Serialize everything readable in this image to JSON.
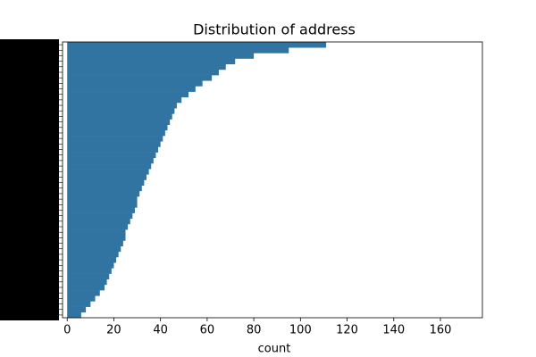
{
  "chart_data": {
    "type": "barh",
    "title": "Distribution of address",
    "xlabel": "count",
    "categories": [
      null,
      null,
      null,
      null,
      null,
      null,
      null,
      null,
      null,
      null,
      null,
      null,
      null,
      null,
      null,
      null,
      null,
      null,
      null,
      null,
      null,
      null,
      null,
      null,
      null,
      null,
      null,
      null,
      null,
      null,
      null,
      null,
      null,
      null,
      null,
      null,
      null,
      null,
      null,
      null,
      null,
      null,
      null,
      null,
      null,
      null,
      null,
      null,
      null,
      null
    ],
    "values": [
      111,
      95,
      80,
      72,
      68,
      65,
      62,
      58,
      55,
      52,
      49,
      47,
      46,
      45,
      44,
      43,
      42,
      41,
      40,
      39,
      38,
      37,
      36,
      35,
      34,
      33,
      32,
      31,
      30,
      30,
      29,
      28,
      27,
      26,
      25,
      25,
      24,
      23,
      22,
      21,
      20,
      19,
      18,
      17,
      16,
      14,
      12,
      10,
      8,
      6
    ],
    "color": "#3274a1",
    "xlim": [
      -2,
      178
    ],
    "xticks": [
      0,
      20,
      40,
      60,
      80,
      100,
      120,
      140,
      160
    ]
  }
}
